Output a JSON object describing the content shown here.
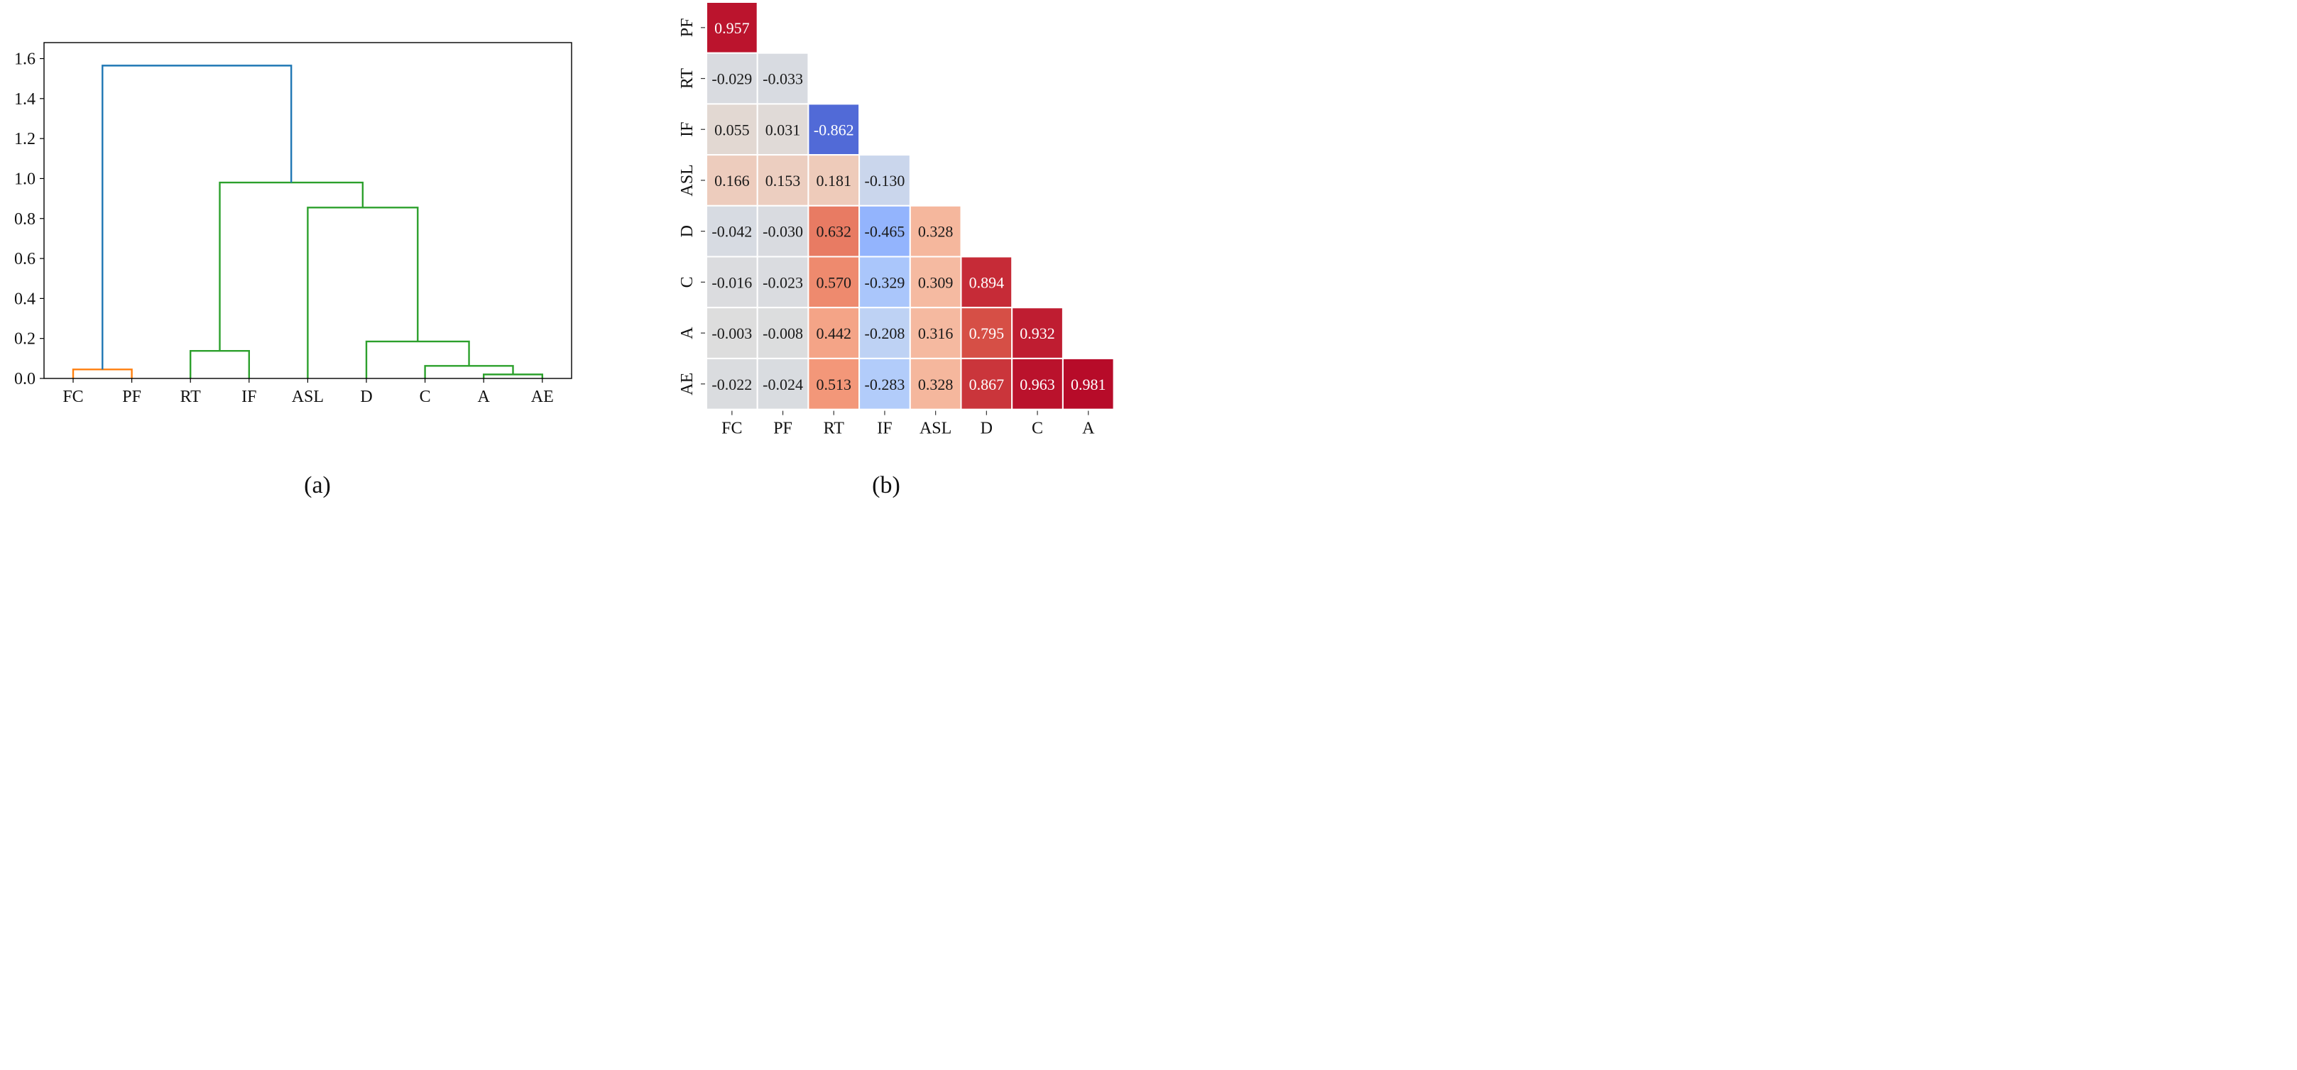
{
  "figure": {
    "label_a": "(a)",
    "label_b": "(b)"
  },
  "chart_data": [
    {
      "type": "dendrogram",
      "ylim": [
        0,
        1.68
      ],
      "yticks": [
        "0.0",
        "0.2",
        "0.4",
        "0.6",
        "0.8",
        "1.0",
        "1.2",
        "1.4",
        "1.6"
      ],
      "ytick_values": [
        0,
        0.2,
        0.4,
        0.6,
        0.8,
        1.0,
        1.2,
        1.4,
        1.6
      ],
      "leaves": [
        "FC",
        "PF",
        "RT",
        "IF",
        "ASL",
        "D",
        "C",
        "A",
        "AE"
      ],
      "colors": {
        "orange": "#ff7f0e",
        "green": "#2ca02c",
        "blue": "#1f77b4"
      },
      "links": [
        {
          "left": "FC",
          "right": "PF",
          "height": 0.045,
          "color": "orange"
        },
        {
          "left": "A",
          "right": "AE",
          "height": 0.02,
          "color": "green"
        },
        {
          "left": "C",
          "right": "A+AE",
          "height": 0.063,
          "color": "green"
        },
        {
          "left": "RT",
          "right": "IF",
          "height": 0.138,
          "color": "green"
        },
        {
          "left": "D",
          "right": "C+A+AE",
          "height": 0.185,
          "color": "green"
        },
        {
          "left": "ASL",
          "right": "D+C+A+AE",
          "height": 0.855,
          "color": "green"
        },
        {
          "left": "RT+IF",
          "right": "ASL+D+C+A+AE",
          "height": 0.98,
          "color": "green"
        },
        {
          "left": "FC+PF",
          "right": "RT+IF+ASL+D+C+A+AE",
          "height": 1.565,
          "color": "blue"
        }
      ]
    },
    {
      "type": "heatmap",
      "rows": [
        "PF",
        "RT",
        "IF",
        "ASL",
        "D",
        "C",
        "A",
        "AE"
      ],
      "cols": [
        "FC",
        "PF",
        "RT",
        "IF",
        "ASL",
        "D",
        "C",
        "A"
      ],
      "values": [
        [
          0.957
        ],
        [
          -0.029,
          -0.033
        ],
        [
          0.055,
          0.031,
          -0.862
        ],
        [
          0.166,
          0.153,
          0.181,
          -0.13
        ],
        [
          -0.042,
          -0.03,
          0.632,
          -0.465,
          0.328
        ],
        [
          -0.016,
          -0.023,
          0.57,
          -0.329,
          0.309,
          0.894
        ],
        [
          -0.003,
          -0.008,
          0.442,
          -0.208,
          0.316,
          0.795,
          0.932
        ],
        [
          -0.022,
          -0.024,
          0.513,
          -0.283,
          0.328,
          0.867,
          0.963,
          0.981
        ]
      ],
      "labels": [
        [
          "0.957"
        ],
        [
          "-0.029",
          "-0.033"
        ],
        [
          "0.055",
          "0.031",
          "-0.862"
        ],
        [
          "0.166",
          "0.153",
          "0.181",
          "-0.130"
        ],
        [
          "-0.042",
          "-0.030",
          "0.632",
          "-0.465",
          "0.328"
        ],
        [
          "-0.016",
          "-0.023",
          "0.570",
          "-0.329",
          "0.309",
          "0.894"
        ],
        [
          "-0.003",
          "-0.008",
          "0.442",
          "-0.208",
          "0.316",
          "0.795",
          "0.932"
        ],
        [
          "-0.022",
          "-0.024",
          "0.513",
          "-0.283",
          "0.328",
          "0.867",
          "0.963",
          "0.981"
        ]
      ],
      "colormap": "coolwarm",
      "vrange": [
        -1,
        1
      ]
    }
  ]
}
